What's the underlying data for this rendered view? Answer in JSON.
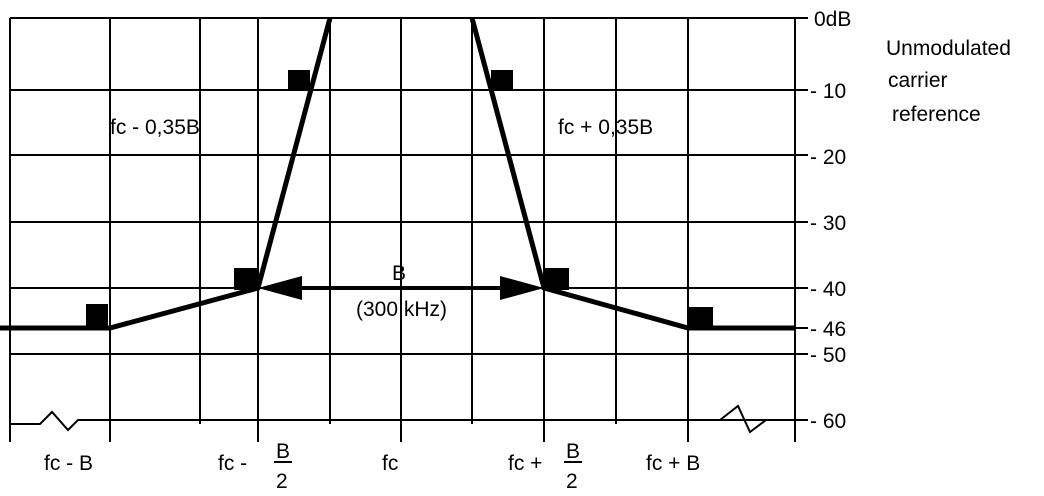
{
  "y_axis_labels": [
    "0dB",
    "- 10",
    "- 20",
    "- 30",
    "- 40",
    "- 46",
    "- 50",
    "- 60"
  ],
  "x_axis_labels": {
    "fc_minus_b": "fc - B",
    "fc_minus_half_prefix": "fc -",
    "fc": "fc",
    "fc_plus_half_prefix": "fc +",
    "fc_plus_b": "fc + B",
    "b_symbol": "B",
    "two": "2"
  },
  "annotations": {
    "left_point": "fc - 0,35B",
    "right_point": "fc + 0,35B",
    "bandwidth": "B",
    "bandwidth_value": "(300 kHz)"
  },
  "side_note": {
    "line1": "Unmodulated",
    "line2": "carrier",
    "line3": "reference"
  },
  "mask": {
    "description_levels_db": [
      0,
      -10,
      -20,
      -30,
      -40,
      -46,
      -50,
      -60
    ]
  }
}
